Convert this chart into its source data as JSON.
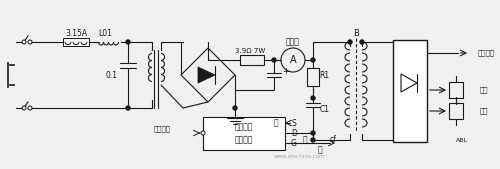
{
  "bg_color": "#f0f0f0",
  "line_color": "#1a1a1a",
  "figsize": [
    5.0,
    1.69
  ],
  "dpi": 100,
  "watermark": "www.elecfans.com",
  "labels": {
    "fuse": "3.15A",
    "l01": "L01",
    "cap01": "0.1",
    "resistor": "3.9Ω 7W",
    "ammeter": "电流表",
    "r1": "R1",
    "c1": "C1",
    "b_label": "B",
    "high_voltage": "阳极高压",
    "heat": "焦热",
    "accel": "加速",
    "abl": "ABL",
    "black": "黑",
    "red": "红",
    "gray": "灰",
    "voltage_adj": "电压调整",
    "power_module": "电源模块",
    "switch_power": "开关电源",
    "s_label": "S",
    "d_label": "D",
    "g_label": "G",
    "cf_label": "cf",
    "plus": "+"
  }
}
